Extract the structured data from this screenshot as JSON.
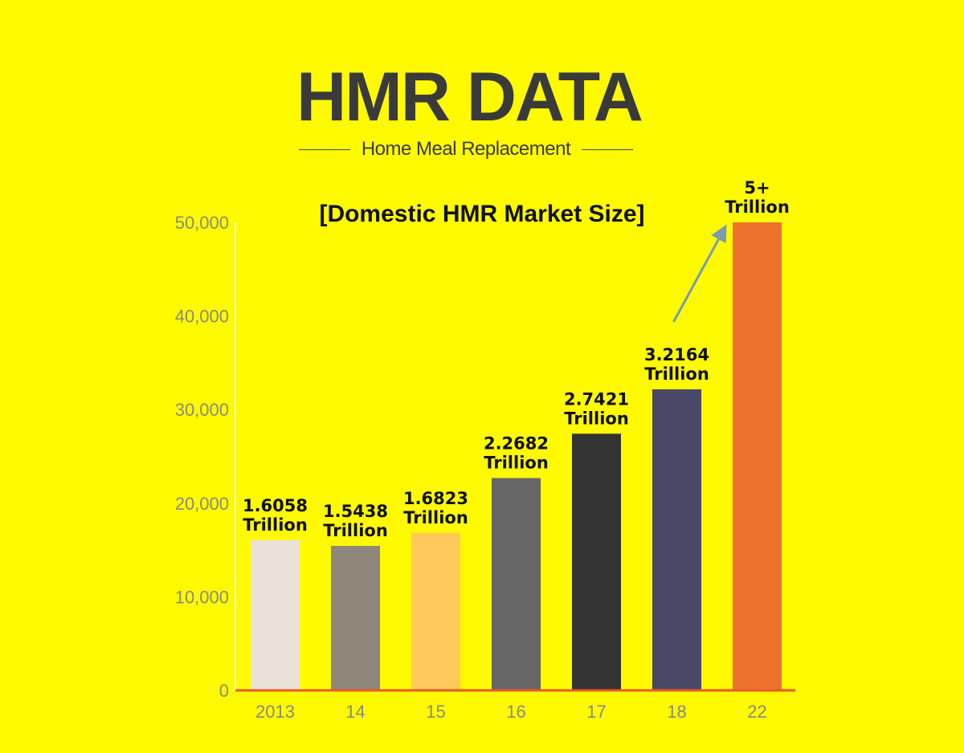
{
  "header": {
    "title": "HMR DATA",
    "subtitle": "Home Meal Replacement"
  },
  "chart_data": {
    "type": "bar",
    "title": "[Domestic HMR Market Size]",
    "xlabel": "",
    "ylabel": "",
    "categories": [
      "2013",
      "14",
      "15",
      "16",
      "17",
      "18",
      "22"
    ],
    "values": [
      16058,
      15438,
      16823,
      22682,
      27421,
      32164,
      50000
    ],
    "data_labels": [
      [
        "1.6058",
        "Trillion"
      ],
      [
        "1.5438",
        "Trillion"
      ],
      [
        "1.6823",
        "Trillion"
      ],
      [
        "2.2682",
        "Trillion"
      ],
      [
        "2.7421",
        "Trillion"
      ],
      [
        "3.2164",
        "Trillion"
      ],
      [
        "5+",
        "Trillion"
      ]
    ],
    "ylim": [
      0,
      50000
    ],
    "yticks": [
      0,
      10000,
      20000,
      30000,
      40000,
      50000
    ],
    "ytick_labels": [
      "0",
      "10,000",
      "20,000",
      "30,000",
      "40,000",
      "50,000"
    ],
    "bar_colors": [
      "#EAE2D6",
      "#8E877A",
      "#FFC85A",
      "#666666",
      "#333333",
      "#4B4867",
      "#EF712E"
    ],
    "axis_color": "#E85A2A",
    "arrow_color": "#7A9BB0",
    "grid": false,
    "legend": "none",
    "annotation": "arrow from 18 bar label to 22 bar"
  }
}
